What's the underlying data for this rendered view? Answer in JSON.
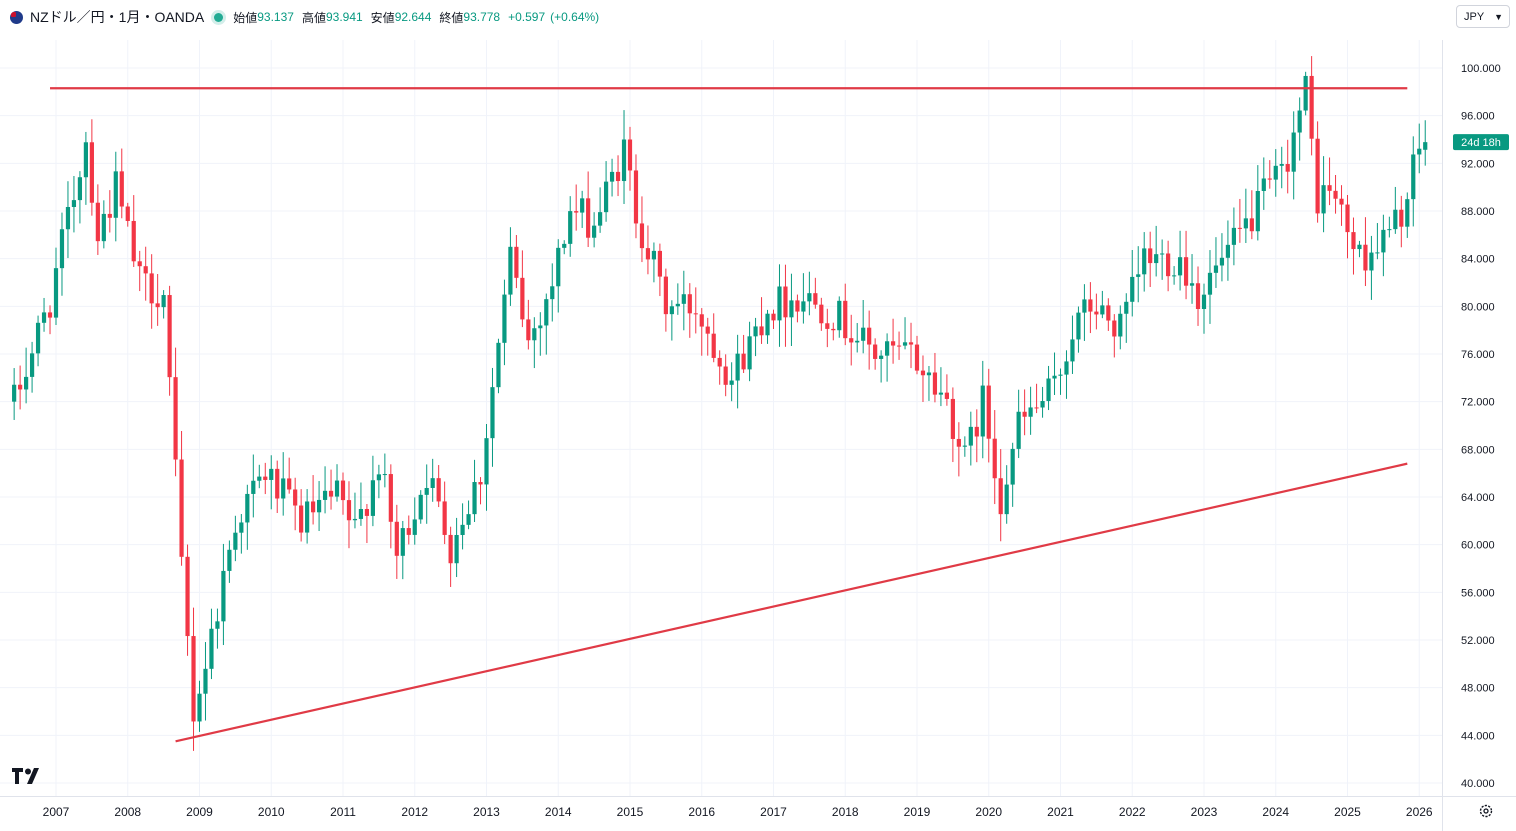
{
  "header": {
    "symbol": "NZドル／円・1月・OANDA",
    "open_label": "始値",
    "open": "93.137",
    "high_label": "高値",
    "high": "93.941",
    "low_label": "安値",
    "low": "92.644",
    "close_label": "終値",
    "close": "93.778",
    "change": "+0.597",
    "change_pct": "(+0.64%)"
  },
  "currency": "JPY",
  "countdown": "24d 18h",
  "colors": {
    "up": "#089981",
    "down": "#f23645",
    "trendline": "#e03a46",
    "grid": "#f0f3fa"
  },
  "icons": {
    "settings": "gear-icon",
    "logo": "tradingview-logo",
    "flag": "nz-flag-icon",
    "select": "chevron-down-icon"
  },
  "chart_data": {
    "type": "candlestick",
    "interval": "1M",
    "ylim": [
      40,
      100
    ],
    "y_ticks": [
      "100.000",
      "96.000",
      "92.000",
      "88.000",
      "84.000",
      "80.000",
      "76.000",
      "72.000",
      "68.000",
      "64.000",
      "60.000",
      "56.000",
      "52.000",
      "48.000",
      "44.000",
      "40.000"
    ],
    "x_ticks": [
      "2007",
      "2008",
      "2009",
      "2010",
      "2011",
      "2012",
      "2013",
      "2014",
      "2015",
      "2016",
      "2017",
      "2018",
      "2019",
      "2020",
      "2021",
      "2022",
      "2023",
      "2024",
      "2025",
      "2026"
    ],
    "x_range": [
      "2006-06",
      "2026-02"
    ],
    "anchors": [
      [
        "2006-06",
        72.0
      ],
      [
        "2006-12",
        80.5
      ],
      [
        "2007-06",
        94.0
      ],
      [
        "2007-08",
        86.0
      ],
      [
        "2007-11",
        90.0
      ],
      [
        "2008-03",
        82.0
      ],
      [
        "2008-07",
        81.0
      ],
      [
        "2008-10",
        58.0
      ],
      [
        "2008-12",
        46.0
      ],
      [
        "2009-02",
        50.0
      ],
      [
        "2009-07",
        62.0
      ],
      [
        "2009-12",
        66.0
      ],
      [
        "2010-06",
        62.0
      ],
      [
        "2010-12",
        64.0
      ],
      [
        "2011-03",
        61.0
      ],
      [
        "2011-07",
        67.0
      ],
      [
        "2011-10",
        59.0
      ],
      [
        "2012-03",
        66.0
      ],
      [
        "2012-07",
        60.0
      ],
      [
        "2012-12",
        66.0
      ],
      [
        "2013-05",
        84.0
      ],
      [
        "2013-08",
        77.0
      ],
      [
        "2013-12",
        82.0
      ],
      [
        "2014-03",
        88.0
      ],
      [
        "2014-07",
        87.0
      ],
      [
        "2014-12",
        93.0
      ],
      [
        "2015-02",
        88.0
      ],
      [
        "2015-07",
        80.0
      ],
      [
        "2015-12",
        80.0
      ],
      [
        "2016-06",
        74.0
      ],
      [
        "2016-12",
        80.0
      ],
      [
        "2017-06",
        81.0
      ],
      [
        "2017-12",
        79.0
      ],
      [
        "2018-06",
        76.0
      ],
      [
        "2018-12",
        76.0
      ],
      [
        "2019-06",
        72.0
      ],
      [
        "2019-09",
        67.0
      ],
      [
        "2019-12",
        72.0
      ],
      [
        "2020-03",
        64.0
      ],
      [
        "2020-06",
        70.0
      ],
      [
        "2020-12",
        73.0
      ],
      [
        "2021-03",
        78.0
      ],
      [
        "2021-06",
        80.0
      ],
      [
        "2021-11",
        78.0
      ],
      [
        "2022-03",
        84.0
      ],
      [
        "2022-09",
        84.0
      ],
      [
        "2022-12",
        81.0
      ],
      [
        "2023-06",
        85.0
      ],
      [
        "2023-12",
        90.0
      ],
      [
        "2024-02",
        91.0
      ],
      [
        "2024-06",
        98.0
      ],
      [
        "2024-08",
        89.0
      ],
      [
        "2024-10",
        90.0
      ],
      [
        "2025-03",
        84.0
      ],
      [
        "2025-08",
        86.0
      ],
      [
        "2025-11",
        89.0
      ],
      [
        "2026-01",
        93.4
      ]
    ],
    "horizontal_line": {
      "price": 98.3,
      "from": "2006-12",
      "to": "2025-11"
    },
    "trendline": {
      "from": [
        "2008-09",
        43.5
      ],
      "to": [
        "2025-11",
        66.8
      ]
    }
  }
}
